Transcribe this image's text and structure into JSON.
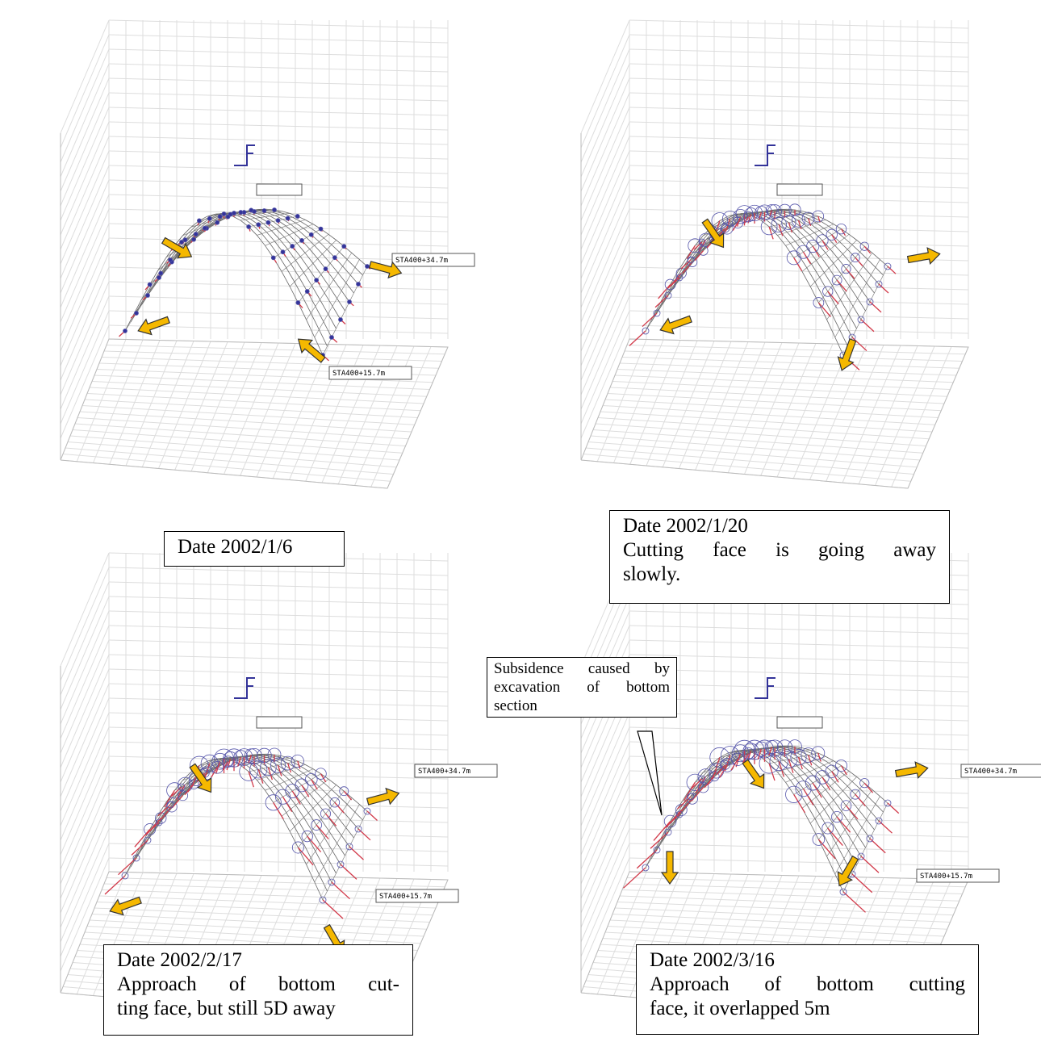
{
  "panels": [
    {
      "date": "Date 2002/1/6",
      "labels": [
        "STA400+34.7m",
        "STA400+15.7m"
      ]
    },
    {
      "date": "Date 2002/1/20",
      "lines": [
        "Cutting face is going away",
        "slowly."
      ]
    },
    {
      "date": "Date 2002/2/17",
      "lines": [
        "Approach of bottom cut-",
        "ting face, but still 5D away"
      ],
      "labels": [
        "STA400+34.7m",
        "STA400+15.7m"
      ]
    },
    {
      "date": "Date 2002/3/16",
      "lines": [
        "Approach of bottom cutting",
        "face, it overlapped 5m"
      ],
      "labels": [
        "STA400+34.7m",
        "STA400+15.7m"
      ]
    }
  ],
  "callout": "Subsidence caused by excavation of bottom section"
}
